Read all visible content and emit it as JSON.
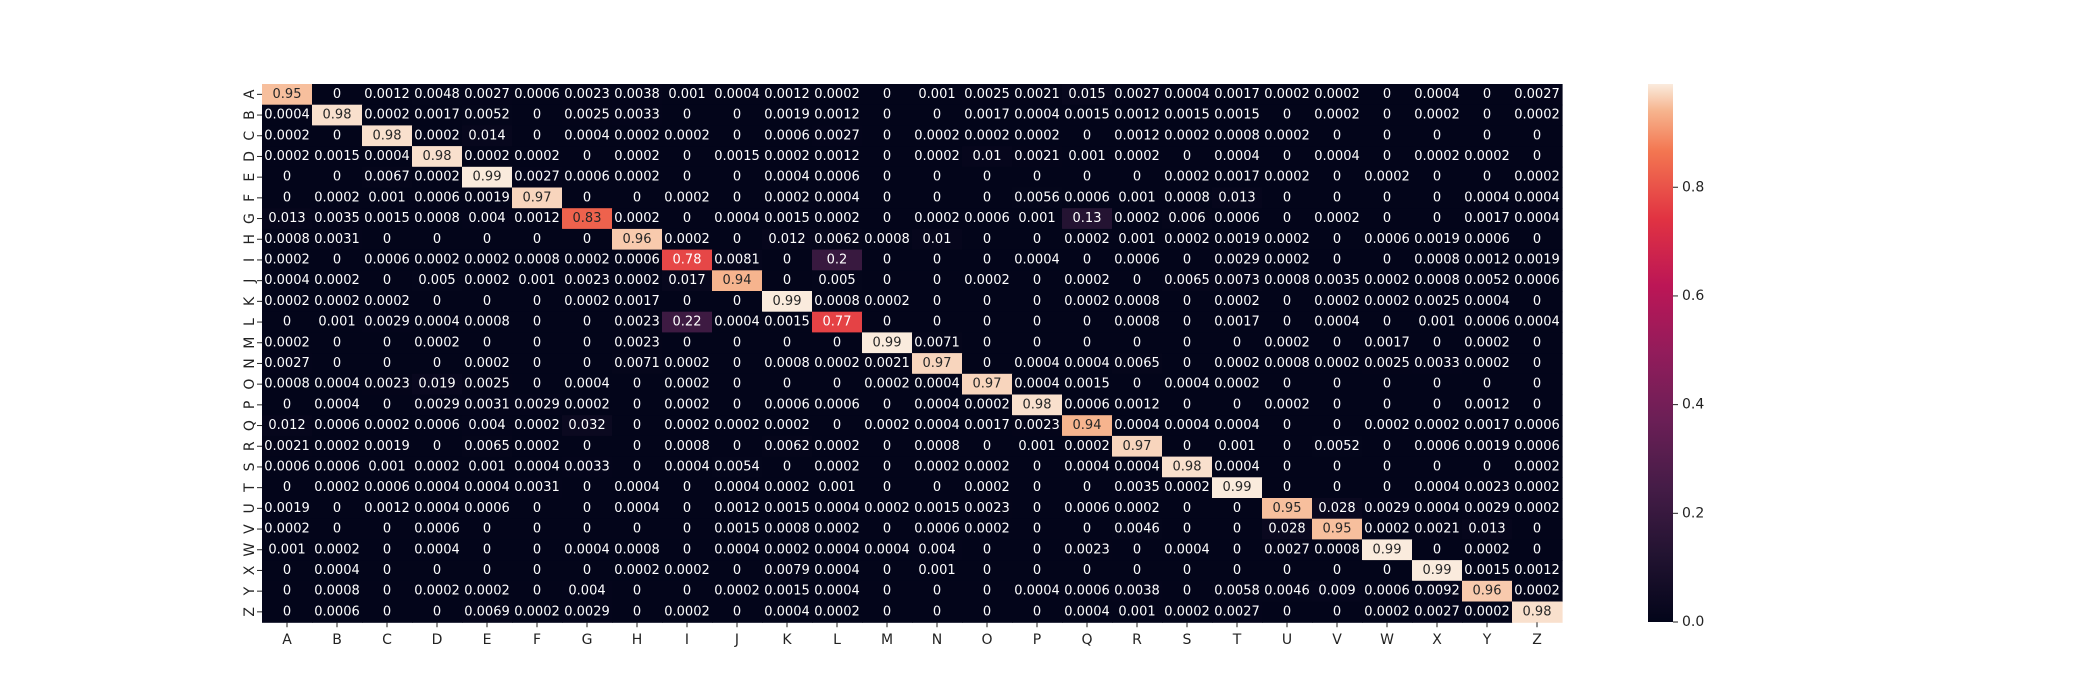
{
  "chart_data": {
    "type": "heatmap",
    "title": "",
    "xlabel": "",
    "ylabel": "",
    "x_categories": [
      "A",
      "B",
      "C",
      "D",
      "E",
      "F",
      "G",
      "H",
      "I",
      "J",
      "K",
      "L",
      "M",
      "N",
      "O",
      "P",
      "Q",
      "R",
      "S",
      "T",
      "U",
      "V",
      "W",
      "X",
      "Y",
      "Z"
    ],
    "y_categories": [
      "A",
      "B",
      "C",
      "D",
      "E",
      "F",
      "G",
      "H",
      "I",
      "J",
      "K",
      "L",
      "M",
      "N",
      "O",
      "P",
      "Q",
      "R",
      "S",
      "T",
      "U",
      "V",
      "W",
      "X",
      "Y",
      "Z"
    ],
    "colorbar": {
      "min": 0,
      "max": 0.99,
      "ticks": [
        "0.0",
        "0.2",
        "0.4",
        "0.6",
        "0.8"
      ],
      "colormap": "rocket"
    },
    "values": [
      [
        "0.95",
        "0",
        "0.0012",
        "0.0048",
        "0.0027",
        "0.0006",
        "0.0023",
        "0.0038",
        "0.001",
        "0.0004",
        "0.0012",
        "0.0002",
        "0",
        "0.001",
        "0.0025",
        "0.0021",
        "0.015",
        "0.0027",
        "0.0004",
        "0.0017",
        "0.0002",
        "0.0002",
        "0",
        "0.0004",
        "0",
        "0.0027"
      ],
      [
        "0.0004",
        "0.98",
        "0.0002",
        "0.0017",
        "0.0052",
        "0",
        "0.0025",
        "0.0033",
        "0",
        "0",
        "0.0019",
        "0.0012",
        "0",
        "0",
        "0.0017",
        "0.0004",
        "0.0015",
        "0.0012",
        "0.0015",
        "0.0015",
        "0",
        "0.0002",
        "0",
        "0.0002",
        "0",
        "0.0002"
      ],
      [
        "0.0002",
        "0",
        "0.98",
        "0.0002",
        "0.014",
        "0",
        "0.0004",
        "0.0002",
        "0.0002",
        "0",
        "0.0006",
        "0.0027",
        "0",
        "0.0002",
        "0.0002",
        "0.0002",
        "0",
        "0.0012",
        "0.0002",
        "0.0008",
        "0.0002",
        "0",
        "0",
        "0",
        "0",
        "0"
      ],
      [
        "0.0002",
        "0.0015",
        "0.0004",
        "0.98",
        "0.0002",
        "0.0002",
        "0",
        "0.0002",
        "0",
        "0.0015",
        "0.0002",
        "0.0012",
        "0",
        "0.0002",
        "0.01",
        "0.0021",
        "0.001",
        "0.0002",
        "0",
        "0.0004",
        "0",
        "0.0004",
        "0",
        "0.0002",
        "0.0002",
        "0"
      ],
      [
        "0",
        "0",
        "0.0067",
        "0.0002",
        "0.99",
        "0.0027",
        "0.0006",
        "0.0002",
        "0",
        "0",
        "0.0004",
        "0.0006",
        "0",
        "0",
        "0",
        "0",
        "0",
        "0",
        "0.0002",
        "0.0017",
        "0.0002",
        "0",
        "0.0002",
        "0",
        "0",
        "0.0002"
      ],
      [
        "0",
        "0.0002",
        "0.001",
        "0.0006",
        "0.0019",
        "0.97",
        "0",
        "0",
        "0.0002",
        "0",
        "0.0002",
        "0.0004",
        "0",
        "0",
        "0",
        "0.0056",
        "0.0006",
        "0.001",
        "0.0008",
        "0.013",
        "0",
        "0",
        "0",
        "0",
        "0.0004",
        "0.0004"
      ],
      [
        "0.013",
        "0.0035",
        "0.0015",
        "0.0008",
        "0.004",
        "0.0012",
        "0.83",
        "0.0002",
        "0",
        "0.0004",
        "0.0015",
        "0.0002",
        "0",
        "0.0002",
        "0.0006",
        "0.001",
        "0.13",
        "0.0002",
        "0.006",
        "0.0006",
        "0",
        "0.0002",
        "0",
        "0",
        "0.0017",
        "0.0004"
      ],
      [
        "0.0008",
        "0.0031",
        "0",
        "0",
        "0",
        "0",
        "0",
        "0.96",
        "0.0002",
        "0",
        "0.012",
        "0.0062",
        "0.0008",
        "0.01",
        "0",
        "0",
        "0.0002",
        "0.001",
        "0.0002",
        "0.0019",
        "0.0002",
        "0",
        "0.0006",
        "0.0019",
        "0.0006",
        "0"
      ],
      [
        "0.0002",
        "0",
        "0.0006",
        "0.0002",
        "0.0002",
        "0.0008",
        "0.0002",
        "0.0006",
        "0.78",
        "0.0081",
        "0",
        "0.2",
        "0",
        "0",
        "0",
        "0.0004",
        "0",
        "0.0006",
        "0",
        "0.0029",
        "0.0002",
        "0",
        "0",
        "0.0008",
        "0.0012",
        "0.0019"
      ],
      [
        "0.0004",
        "0.0002",
        "0",
        "0.005",
        "0.0002",
        "0.001",
        "0.0023",
        "0.0002",
        "0.017",
        "0.94",
        "0",
        "0.005",
        "0",
        "0",
        "0.0002",
        "0",
        "0.0002",
        "0",
        "0.0065",
        "0.0073",
        "0.0008",
        "0.0035",
        "0.0002",
        "0.0008",
        "0.0052",
        "0.0006"
      ],
      [
        "0.0002",
        "0.0002",
        "0.0002",
        "0",
        "0",
        "0",
        "0.0002",
        "0.0017",
        "0",
        "0",
        "0.99",
        "0.0008",
        "0.0002",
        "0",
        "0",
        "0",
        "0.0002",
        "0.0008",
        "0",
        "0.0002",
        "0",
        "0.0002",
        "0.0002",
        "0.0025",
        "0.0004",
        "0"
      ],
      [
        "0",
        "0.001",
        "0.0029",
        "0.0004",
        "0.0008",
        "0",
        "0",
        "0.0023",
        "0.22",
        "0.0004",
        "0.0015",
        "0.77",
        "0",
        "0",
        "0",
        "0",
        "0",
        "0.0008",
        "0",
        "0.0017",
        "0",
        "0.0004",
        "0",
        "0.001",
        "0.0006",
        "0.0004"
      ],
      [
        "0.0002",
        "0",
        "0",
        "0.0002",
        "0",
        "0",
        "0",
        "0.0023",
        "0",
        "0",
        "0",
        "0",
        "0.99",
        "0.0071",
        "0",
        "0",
        "0",
        "0",
        "0",
        "0",
        "0.0002",
        "0",
        "0.0017",
        "0",
        "0.0002",
        "0"
      ],
      [
        "0.0027",
        "0",
        "0",
        "0",
        "0.0002",
        "0",
        "0",
        "0.0071",
        "0.0002",
        "0",
        "0.0008",
        "0.0002",
        "0.0021",
        "0.97",
        "0",
        "0.0004",
        "0.0004",
        "0.0065",
        "0",
        "0.0002",
        "0.0008",
        "0.0002",
        "0.0025",
        "0.0033",
        "0.0002",
        "0"
      ],
      [
        "0.0008",
        "0.0004",
        "0.0023",
        "0.019",
        "0.0025",
        "0",
        "0.0004",
        "0",
        "0.0002",
        "0",
        "0",
        "0",
        "0.0002",
        "0.0004",
        "0.97",
        "0.0004",
        "0.0015",
        "0",
        "0.0004",
        "0.0002",
        "0",
        "0",
        "0",
        "0",
        "0",
        "0"
      ],
      [
        "0",
        "0.0004",
        "0",
        "0.0029",
        "0.0031",
        "0.0029",
        "0.0002",
        "0",
        "0.0002",
        "0",
        "0.0006",
        "0.0006",
        "0",
        "0.0004",
        "0.0002",
        "0.98",
        "0.0006",
        "0.0012",
        "0",
        "0",
        "0.0002",
        "0",
        "0",
        "0",
        "0.0012",
        "0"
      ],
      [
        "0.012",
        "0.0006",
        "0.0002",
        "0.0006",
        "0.004",
        "0.0002",
        "0.032",
        "0",
        "0.0002",
        "0.0002",
        "0.0002",
        "0",
        "0.0002",
        "0.0004",
        "0.0017",
        "0.0023",
        "0.94",
        "0.0004",
        "0.0004",
        "0.0004",
        "0",
        "0",
        "0.0002",
        "0.0002",
        "0.0017",
        "0.0006"
      ],
      [
        "0.0021",
        "0.0002",
        "0.0019",
        "0",
        "0.0065",
        "0.0002",
        "0",
        "0",
        "0.0008",
        "0",
        "0.0062",
        "0.0002",
        "0",
        "0.0008",
        "0",
        "0.001",
        "0.0002",
        "0.97",
        "0",
        "0.001",
        "0",
        "0.0052",
        "0",
        "0.0006",
        "0.0019",
        "0.0006"
      ],
      [
        "0.0006",
        "0.0006",
        "0.001",
        "0.0002",
        "0.001",
        "0.0004",
        "0.0033",
        "0",
        "0.0004",
        "0.0054",
        "0",
        "0.0002",
        "0",
        "0.0002",
        "0.0002",
        "0",
        "0.0004",
        "0.0004",
        "0.98",
        "0.0004",
        "0",
        "0",
        "0",
        "0",
        "0",
        "0.0002"
      ],
      [
        "0",
        "0.0002",
        "0.0006",
        "0.0004",
        "0.0004",
        "0.0031",
        "0",
        "0.0004",
        "0",
        "0.0004",
        "0.0002",
        "0.001",
        "0",
        "0",
        "0.0002",
        "0",
        "0",
        "0.0035",
        "0.0002",
        "0.99",
        "0",
        "0",
        "0",
        "0.0004",
        "0.0023",
        "0.0002"
      ],
      [
        "0.0019",
        "0",
        "0.0012",
        "0.0004",
        "0.0006",
        "0",
        "0",
        "0.0004",
        "0",
        "0.0012",
        "0.0015",
        "0.0004",
        "0.0002",
        "0.0015",
        "0.0023",
        "0",
        "0.0006",
        "0.0002",
        "0",
        "0",
        "0.95",
        "0.028",
        "0.0029",
        "0.0004",
        "0.0029",
        "0.0002"
      ],
      [
        "0.0002",
        "0",
        "0",
        "0.0006",
        "0",
        "0",
        "0",
        "0",
        "0",
        "0.0015",
        "0.0008",
        "0.0002",
        "0",
        "0.0006",
        "0.0002",
        "0",
        "0",
        "0.0046",
        "0",
        "0",
        "0.028",
        "0.95",
        "0.0002",
        "0.0021",
        "0.013",
        "0"
      ],
      [
        "0.001",
        "0.0002",
        "0",
        "0.0004",
        "0",
        "0",
        "0.0004",
        "0.0008",
        "0",
        "0.0004",
        "0.0002",
        "0.0004",
        "0.0004",
        "0.004",
        "0",
        "0",
        "0.0023",
        "0",
        "0.0004",
        "0",
        "0.0027",
        "0.0008",
        "0.99",
        "0",
        "0.0002",
        "0"
      ],
      [
        "0",
        "0.0004",
        "0",
        "0",
        "0",
        "0",
        "0",
        "0.0002",
        "0.0002",
        "0",
        "0.0079",
        "0.0004",
        "0",
        "0.001",
        "0",
        "0",
        "0",
        "0",
        "0",
        "0",
        "0",
        "0",
        "0",
        "0.99",
        "0.0015",
        "0.0012"
      ],
      [
        "0",
        "0.0008",
        "0",
        "0.0002",
        "0.0002",
        "0",
        "0.004",
        "0",
        "0",
        "0.0002",
        "0.0015",
        "0.0004",
        "0",
        "0",
        "0",
        "0.0004",
        "0.0006",
        "0.0038",
        "0",
        "0.0058",
        "0.0046",
        "0.009",
        "0.0006",
        "0.0092",
        "0.96",
        "0.0002"
      ],
      [
        "0",
        "0.0006",
        "0",
        "0",
        "0.0069",
        "0.0002",
        "0.0029",
        "0",
        "0.0002",
        "0",
        "0.0004",
        "0.0002",
        "0",
        "0",
        "0",
        "0",
        "0.0004",
        "0.001",
        "0.0002",
        "0.0027",
        "0",
        "0",
        "0.0002",
        "0.0027",
        "0.0002",
        "0.98"
      ]
    ]
  }
}
